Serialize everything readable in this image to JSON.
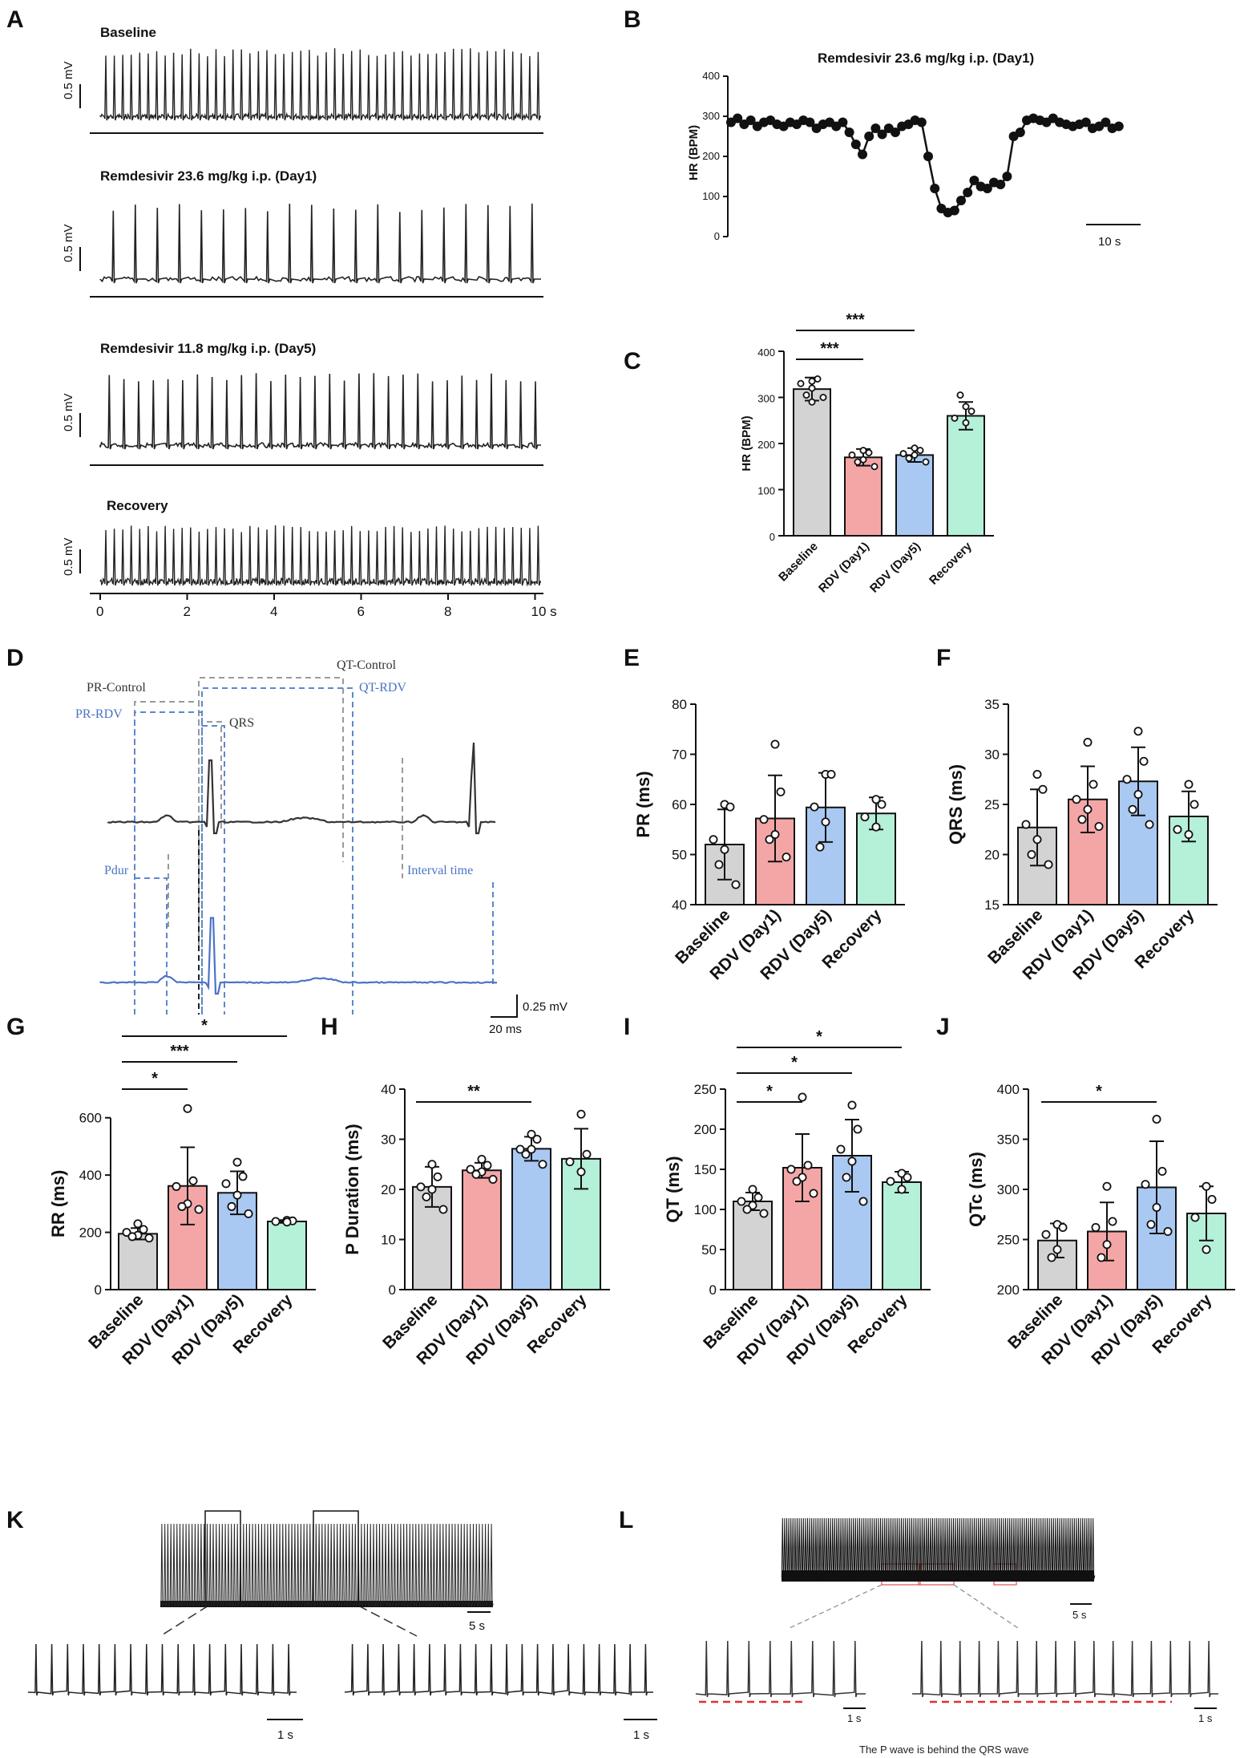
{
  "colors": {
    "baseline": "#d3d3d3",
    "rdv_day1": "#f4a6a6",
    "rdv_day5": "#a9c9f2",
    "recovery": "#b5f0d8",
    "trace": "#222222",
    "trace_blue": "#4a74c4",
    "guide_gray": "#9a9a9a",
    "guide_blue": "#5b88cf",
    "red_dash": "#e03030",
    "red_box": "#e05050"
  },
  "panel_labels": [
    "A",
    "B",
    "C",
    "D",
    "E",
    "F",
    "G",
    "H",
    "I",
    "J",
    "K",
    "L"
  ],
  "panel_a": {
    "traces": [
      {
        "title": "Baseline",
        "scale": "0.5 mV",
        "beats": 52
      },
      {
        "title": "Remdesivir 23.6 mg/kg i.p. (Day1)",
        "scale": "0.5 mV",
        "beats": 20
      },
      {
        "title": "Remdesivir 11.8 mg/kg i.p. (Day5)",
        "scale": "0.5 mV",
        "beats": 30
      },
      {
        "title": "Recovery",
        "scale": "0.5 mV",
        "beats": 52
      }
    ],
    "x_ticks": [
      "0",
      "2",
      "4",
      "6",
      "8",
      "10 s"
    ]
  },
  "panel_b": {
    "title": "Remdesivir 23.6 mg/kg i.p. (Day1)",
    "ylabel": "HR (BPM)",
    "scale_bar": "10 s"
  },
  "panel_d": {
    "labels": {
      "pr_control": "PR-Control",
      "pr_rdv": "PR-RDV",
      "qrs": "QRS",
      "qt_control": "QT-Control",
      "qt_rdv": "QT-RDV",
      "pdur": "Pdur",
      "interval": "Interval time",
      "scale_mv": "0.25 mV",
      "scale_ms": "20 ms"
    }
  },
  "panel_k": {
    "scale_big": "5 s",
    "scale_zoom_1": "1 s",
    "scale_zoom_2": "1 s"
  },
  "panel_l": {
    "scale_big": "5 s",
    "scale_zoom_1": "1 s",
    "scale_zoom_2": "1 s",
    "caption": "The P wave is behind the QRS wave"
  },
  "chart_data": [
    {
      "id": "B",
      "type": "line",
      "title": "Remdesivir 23.6 mg/kg i.p. (Day1)",
      "xlabel": "",
      "ylabel": "HR (BPM)",
      "ylim": [
        0,
        400
      ],
      "yticks": [
        0,
        100,
        200,
        300,
        400
      ],
      "xlim": [
        0,
        60
      ],
      "x": [
        0,
        1,
        2,
        3,
        4,
        5,
        6,
        7,
        8,
        9,
        10,
        11,
        12,
        13,
        14,
        15,
        16,
        17,
        18,
        19,
        20,
        21,
        22,
        23,
        24,
        25,
        26,
        27,
        28,
        29,
        30,
        31,
        32,
        33,
        34,
        35,
        36,
        37,
        38,
        39,
        40,
        41,
        42,
        43,
        44,
        45,
        46,
        47,
        48,
        49,
        50,
        51,
        52,
        53,
        54,
        55,
        56,
        57,
        58,
        59
      ],
      "values": [
        285,
        295,
        280,
        290,
        275,
        285,
        290,
        280,
        275,
        285,
        280,
        290,
        285,
        270,
        280,
        285,
        275,
        285,
        260,
        230,
        205,
        250,
        270,
        255,
        270,
        260,
        275,
        280,
        290,
        285,
        200,
        120,
        70,
        60,
        65,
        90,
        110,
        140,
        125,
        120,
        135,
        130,
        150,
        250,
        260,
        290,
        295,
        290,
        285,
        295,
        285,
        280,
        275,
        280,
        285,
        270,
        275,
        285,
        270,
        275
      ]
    },
    {
      "id": "C",
      "type": "bar",
      "categories": [
        "Baseline",
        "RDV (Day1)",
        "RDV (Day5)",
        "Recovery"
      ],
      "values": [
        318,
        170,
        175,
        260
      ],
      "errors": [
        25,
        18,
        15,
        30
      ],
      "points": [
        [
          335,
          340,
          330,
          320,
          305,
          300,
          290
        ],
        [
          185,
          180,
          175,
          165,
          160,
          150
        ],
        [
          190,
          185,
          178,
          175,
          168,
          160
        ],
        [
          280,
          270,
          255,
          245,
          305
        ]
      ],
      "ylabel": "HR (BPM)",
      "ylim": [
        0,
        400
      ],
      "yticks": [
        0,
        100,
        200,
        300,
        400
      ],
      "significance": [
        {
          "from": 0,
          "to": 1,
          "label": "***"
        },
        {
          "from": 0,
          "to": 2,
          "label": "***"
        }
      ]
    },
    {
      "id": "E",
      "type": "bar",
      "categories": [
        "Baseline",
        "RDV (Day1)",
        "RDV (Day5)",
        "Recovery"
      ],
      "values": [
        52,
        57.2,
        59.4,
        58.2
      ],
      "errors": [
        7,
        8.6,
        6.9,
        3.2
      ],
      "points": [
        [
          60,
          59.5,
          53,
          51,
          48,
          44
        ],
        [
          72,
          62.5,
          57,
          54,
          53,
          49.5
        ],
        [
          66,
          66,
          59.5,
          56.5,
          51.5
        ],
        [
          61,
          60,
          57.5,
          55.5
        ]
      ],
      "ylabel": "PR (ms)",
      "ylim": [
        40,
        80
      ],
      "yticks": [
        40,
        50,
        60,
        70,
        80
      ],
      "significance": []
    },
    {
      "id": "F",
      "type": "bar",
      "categories": [
        "Baseline",
        "RDV (Day1)",
        "RDV (Day5)",
        "Recovery"
      ],
      "values": [
        22.7,
        25.5,
        27.3,
        23.8
      ],
      "errors": [
        3.8,
        3.3,
        3.4,
        2.5
      ],
      "points": [
        [
          28,
          26.5,
          23,
          21.5,
          20,
          19
        ],
        [
          31.2,
          27,
          25.5,
          24.5,
          23.5,
          22.8
        ],
        [
          32.3,
          29.3,
          27.5,
          26,
          24.5,
          23
        ],
        [
          27,
          25,
          22.5,
          22
        ]
      ],
      "ylabel": "QRS (ms)",
      "ylim": [
        15,
        35
      ],
      "yticks": [
        15,
        20,
        25,
        30,
        35
      ],
      "significance": []
    },
    {
      "id": "G",
      "type": "bar",
      "categories": [
        "Baseline",
        "RDV (Day1)",
        "RDV (Day5)",
        "Recovery"
      ],
      "values": [
        195,
        362,
        338,
        238
      ],
      "errors": [
        20,
        135,
        75,
        5
      ],
      "points": [
        [
          230,
          210,
          200,
          190,
          185,
          180
        ],
        [
          632,
          380,
          360,
          300,
          290,
          280
        ],
        [
          445,
          395,
          370,
          330,
          290,
          265
        ],
        [
          242,
          240,
          238,
          236
        ]
      ],
      "ylabel": "RR (ms)",
      "ylim": [
        0,
        700
      ],
      "yticks": [
        0,
        200,
        400,
        600
      ],
      "significance": [
        {
          "from": 0,
          "to": 1,
          "label": "*"
        },
        {
          "from": 0,
          "to": 2,
          "label": "***"
        },
        {
          "from": 0,
          "to": 3,
          "label": "*"
        }
      ]
    },
    {
      "id": "H",
      "type": "bar",
      "categories": [
        "Baseline",
        "RDV (Day1)",
        "RDV (Day5)",
        "Recovery"
      ],
      "values": [
        20.5,
        23.8,
        28.1,
        26.1
      ],
      "errors": [
        4,
        1.5,
        2.4,
        6
      ],
      "points": [
        [
          25,
          22.5,
          20.5,
          20,
          18.5,
          16
        ],
        [
          26,
          24.8,
          24,
          23.5,
          23,
          22
        ],
        [
          31,
          30,
          28,
          28,
          27,
          25
        ],
        [
          35,
          27,
          25.5,
          23.5
        ]
      ],
      "ylabel": "P Duration  (ms)",
      "ylim": [
        0,
        40
      ],
      "yticks": [
        0,
        10,
        20,
        30,
        40
      ],
      "significance": [
        {
          "from": 0,
          "to": 2,
          "label": "**"
        }
      ]
    },
    {
      "id": "I",
      "type": "bar",
      "categories": [
        "Baseline",
        "RDV (Day1)",
        "RDV (Day5)",
        "Recovery"
      ],
      "values": [
        110,
        152,
        167,
        134
      ],
      "errors": [
        11,
        42,
        45,
        13
      ],
      "points": [
        [
          125,
          115,
          110,
          105,
          100,
          95
        ],
        [
          240,
          155,
          150,
          140,
          135,
          120
        ],
        [
          230,
          200,
          175,
          160,
          140,
          110
        ],
        [
          145,
          140,
          135,
          125
        ]
      ],
      "ylabel": "QT (ms)",
      "ylim": [
        0,
        250
      ],
      "yticks": [
        0,
        50,
        100,
        150,
        200,
        250
      ],
      "significance": [
        {
          "from": 0,
          "to": 1,
          "label": "*"
        },
        {
          "from": 0,
          "to": 2,
          "label": "*"
        },
        {
          "from": 0,
          "to": 3,
          "label": "*"
        }
      ]
    },
    {
      "id": "J",
      "type": "bar",
      "categories": [
        "Baseline",
        "RDV (Day1)",
        "RDV (Day5)",
        "Recovery"
      ],
      "values": [
        249,
        258,
        302,
        276
      ],
      "errors": [
        17,
        29,
        46,
        27
      ],
      "points": [
        [
          265,
          262,
          255,
          240,
          232
        ],
        [
          303,
          268,
          262,
          245,
          232
        ],
        [
          370,
          318,
          305,
          282,
          265,
          258
        ],
        [
          303,
          290,
          272,
          240
        ]
      ],
      "ylabel": "QTc (ms)",
      "ylim": [
        200,
        400
      ],
      "yticks": [
        200,
        250,
        300,
        350,
        400
      ],
      "significance": [
        {
          "from": 0,
          "to": 2,
          "label": "*"
        }
      ]
    }
  ]
}
